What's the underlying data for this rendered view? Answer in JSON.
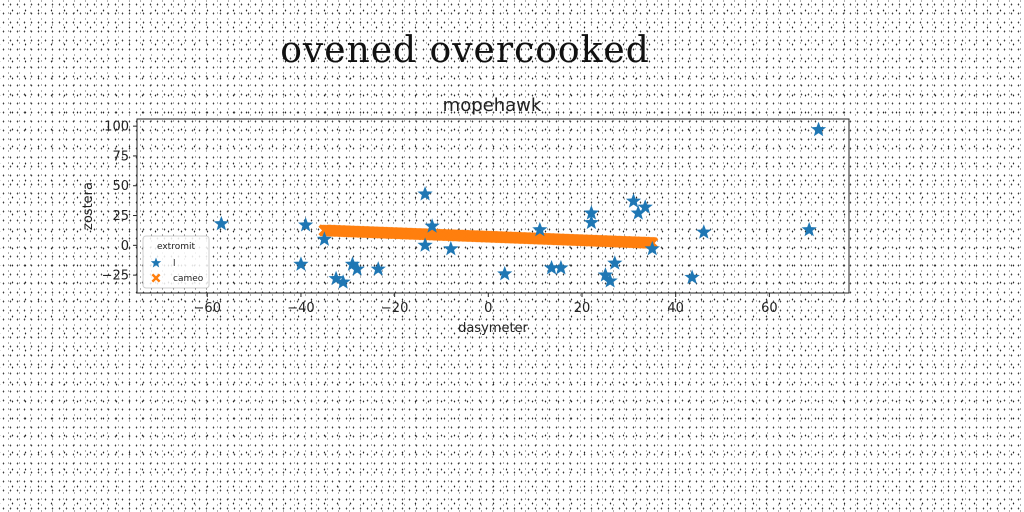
{
  "figure": {
    "suptitle": "ovened  overcooked"
  },
  "chart_data": {
    "type": "scatter",
    "title": "mopehawk",
    "xlabel": "dasymeter",
    "ylabel": "zostera",
    "xlim": [
      -75,
      77
    ],
    "ylim": [
      -40,
      106
    ],
    "xticks": [
      -60,
      -40,
      -20,
      0,
      20,
      40,
      60
    ],
    "yticks": [
      -25,
      0,
      25,
      50,
      75,
      100
    ],
    "grid": false,
    "legend": {
      "title": "extromit",
      "placement": "lower-left"
    },
    "series": [
      {
        "name": "l",
        "marker": "star",
        "color": "#1f77b4",
        "points": [
          [
            70.5,
            97
          ],
          [
            -57,
            18
          ],
          [
            -39,
            17
          ],
          [
            -40,
            -16
          ],
          [
            -35,
            5
          ],
          [
            -32.5,
            -28
          ],
          [
            -31,
            -31
          ],
          [
            -29,
            -16
          ],
          [
            -28,
            -20
          ],
          [
            -23.5,
            -20
          ],
          [
            -13.5,
            43
          ],
          [
            -12,
            16
          ],
          [
            -13.5,
            0
          ],
          [
            -8,
            -3
          ],
          [
            3.5,
            -24
          ],
          [
            11,
            13
          ],
          [
            13.5,
            -19
          ],
          [
            15.5,
            -19
          ],
          [
            22,
            27
          ],
          [
            22,
            19
          ],
          [
            25,
            -25
          ],
          [
            26,
            -30
          ],
          [
            27,
            -15
          ],
          [
            31,
            37
          ],
          [
            32,
            27
          ],
          [
            33.5,
            32
          ],
          [
            35,
            -3
          ],
          [
            43.5,
            -27
          ],
          [
            46,
            11
          ],
          [
            68.5,
            13
          ]
        ]
      },
      {
        "name": "cameo",
        "marker": "x",
        "color": "#ff7f0e",
        "line": {
          "x_from": -35,
          "x_to": 35,
          "y_at_start": 12.5,
          "y_at_end": 2,
          "count": 260
        }
      }
    ]
  }
}
